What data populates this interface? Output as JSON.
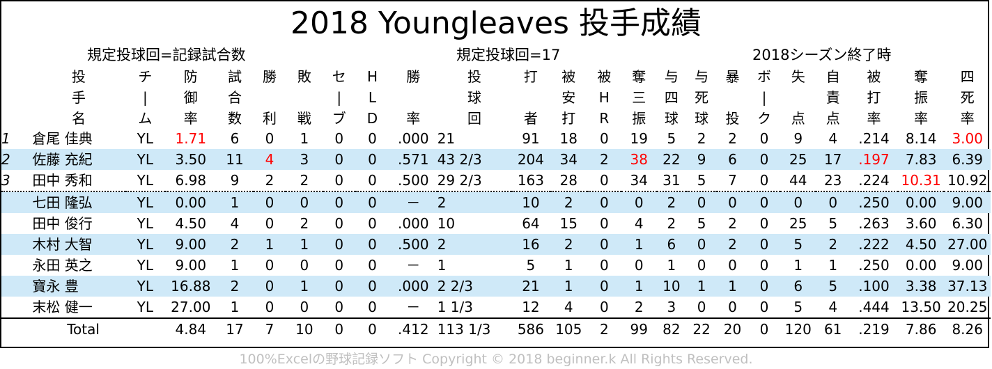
{
  "title": "2018 Youngleaves 投手成績",
  "subtitle_left": "規定投球回=記録試合数",
  "subtitle_center": "規定投球回=17",
  "subtitle_right": "2018シーズン終了時",
  "columns": [
    {
      "key": "rank",
      "l1": "",
      "l2": "",
      "l3": ""
    },
    {
      "key": "name",
      "l1": "投",
      "l2": "手",
      "l3": "名"
    },
    {
      "key": "team",
      "l1": "チ",
      "l2": "|",
      "l3": "ム"
    },
    {
      "key": "era",
      "l1": "防",
      "l2": "御",
      "l3": "率"
    },
    {
      "key": "games",
      "l1": "試",
      "l2": "合",
      "l3": "数"
    },
    {
      "key": "wins",
      "l1": "勝",
      "l2": "",
      "l3": "利"
    },
    {
      "key": "losses",
      "l1": "敗",
      "l2": "",
      "l3": "戦"
    },
    {
      "key": "saves",
      "l1": "セ",
      "l2": "|",
      "l3": "ブ"
    },
    {
      "key": "holds",
      "l1": "H",
      "l2": "L",
      "l3": "D"
    },
    {
      "key": "wpct",
      "l1": "勝",
      "l2": "",
      "l3": "率"
    },
    {
      "key": "ip",
      "l1": "投",
      "l2": "球",
      "l3": "回"
    },
    {
      "key": "bf",
      "l1": "打",
      "l2": "",
      "l3": "者"
    },
    {
      "key": "hits",
      "l1": "被",
      "l2": "安",
      "l3": "打"
    },
    {
      "key": "hr",
      "l1": "被",
      "l2": "H",
      "l3": "R"
    },
    {
      "key": "so",
      "l1": "奪",
      "l2": "三",
      "l3": "振"
    },
    {
      "key": "bb",
      "l1": "与",
      "l2": "四",
      "l3": "球"
    },
    {
      "key": "hbp",
      "l1": "与",
      "l2": "死",
      "l3": "球"
    },
    {
      "key": "wp",
      "l1": "暴",
      "l2": "",
      "l3": "投"
    },
    {
      "key": "bk",
      "l1": "ボ",
      "l2": "|",
      "l3": "ク"
    },
    {
      "key": "runs",
      "l1": "失",
      "l2": "",
      "l3": "点"
    },
    {
      "key": "er",
      "l1": "自",
      "l2": "責",
      "l3": "点"
    },
    {
      "key": "baa",
      "l1": "被",
      "l2": "打",
      "l3": "率"
    },
    {
      "key": "k9",
      "l1": "奪",
      "l2": "振",
      "l3": "率"
    },
    {
      "key": "bb9",
      "l1": "四",
      "l2": "死",
      "l3": "率"
    }
  ],
  "rows": [
    {
      "rank": "1",
      "name": "倉尾 佳典",
      "team": "YL",
      "era": "1.71",
      "games": "6",
      "wins": "0",
      "losses": "1",
      "saves": "0",
      "holds": "0",
      "wpct": ".000",
      "ip": "21",
      "bf": "91",
      "hits": "18",
      "hr": "0",
      "so": "19",
      "bb": "5",
      "hbp": "2",
      "wp": "2",
      "bk": "0",
      "runs": "9",
      "er": "4",
      "baa": ".214",
      "k9": "8.14",
      "bb9": "3.00",
      "highlight": [
        "era",
        "bb9"
      ]
    },
    {
      "rank": "2",
      "name": "佐藤 充紀",
      "team": "YL",
      "era": "3.50",
      "games": "11",
      "wins": "4",
      "losses": "3",
      "saves": "0",
      "holds": "0",
      "wpct": ".571",
      "ip": "43 2/3",
      "bf": "204",
      "hits": "34",
      "hr": "2",
      "so": "38",
      "bb": "22",
      "hbp": "9",
      "wp": "6",
      "bk": "0",
      "runs": "25",
      "er": "17",
      "baa": ".197",
      "k9": "7.83",
      "bb9": "6.39",
      "highlight": [
        "wins",
        "so",
        "baa"
      ]
    },
    {
      "rank": "3",
      "name": "田中 秀和",
      "team": "YL",
      "era": "6.98",
      "games": "9",
      "wins": "2",
      "losses": "2",
      "saves": "0",
      "holds": "0",
      "wpct": ".500",
      "ip": "29 2/3",
      "bf": "163",
      "hits": "28",
      "hr": "0",
      "so": "34",
      "bb": "31",
      "hbp": "5",
      "wp": "7",
      "bk": "0",
      "runs": "44",
      "er": "23",
      "baa": ".224",
      "k9": "10.31",
      "bb9": "10.92",
      "highlight": [
        "k9"
      ]
    },
    {
      "rank": "",
      "name": "七田 隆弘",
      "team": "YL",
      "era": "0.00",
      "games": "1",
      "wins": "0",
      "losses": "0",
      "saves": "0",
      "holds": "0",
      "wpct": "－",
      "ip": "2",
      "bf": "10",
      "hits": "2",
      "hr": "0",
      "so": "0",
      "bb": "2",
      "hbp": "0",
      "wp": "0",
      "bk": "0",
      "runs": "0",
      "er": "0",
      "baa": ".250",
      "k9": "0.00",
      "bb9": "9.00",
      "highlight": []
    },
    {
      "rank": "",
      "name": "田中 俊行",
      "team": "YL",
      "era": "4.50",
      "games": "4",
      "wins": "0",
      "losses": "2",
      "saves": "0",
      "holds": "0",
      "wpct": ".000",
      "ip": "10",
      "bf": "64",
      "hits": "15",
      "hr": "0",
      "so": "4",
      "bb": "2",
      "hbp": "5",
      "wp": "2",
      "bk": "0",
      "runs": "25",
      "er": "5",
      "baa": ".263",
      "k9": "3.60",
      "bb9": "6.30",
      "highlight": []
    },
    {
      "rank": "",
      "name": "木村 大智",
      "team": "YL",
      "era": "9.00",
      "games": "2",
      "wins": "1",
      "losses": "1",
      "saves": "0",
      "holds": "0",
      "wpct": ".500",
      "ip": "2",
      "bf": "16",
      "hits": "2",
      "hr": "0",
      "so": "1",
      "bb": "6",
      "hbp": "0",
      "wp": "2",
      "bk": "0",
      "runs": "5",
      "er": "2",
      "baa": ".222",
      "k9": "4.50",
      "bb9": "27.00",
      "highlight": []
    },
    {
      "rank": "",
      "name": "永田 英之",
      "team": "YL",
      "era": "9.00",
      "games": "1",
      "wins": "0",
      "losses": "0",
      "saves": "0",
      "holds": "0",
      "wpct": "－",
      "ip": "1",
      "bf": "5",
      "hits": "1",
      "hr": "0",
      "so": "0",
      "bb": "1",
      "hbp": "0",
      "wp": "0",
      "bk": "0",
      "runs": "1",
      "er": "1",
      "baa": ".250",
      "k9": "0.00",
      "bb9": "9.00",
      "highlight": []
    },
    {
      "rank": "",
      "name": "寶永 豊",
      "team": "YL",
      "era": "16.88",
      "games": "2",
      "wins": "0",
      "losses": "1",
      "saves": "0",
      "holds": "0",
      "wpct": ".000",
      "ip": "2 2/3",
      "bf": "21",
      "hits": "1",
      "hr": "0",
      "so": "1",
      "bb": "10",
      "hbp": "1",
      "wp": "1",
      "bk": "0",
      "runs": "6",
      "er": "5",
      "baa": ".100",
      "k9": "3.38",
      "bb9": "37.13",
      "highlight": []
    },
    {
      "rank": "",
      "name": "末松 健一",
      "team": "YL",
      "era": "27.00",
      "games": "1",
      "wins": "0",
      "losses": "0",
      "saves": "0",
      "holds": "0",
      "wpct": "－",
      "ip": "1 1/3",
      "bf": "12",
      "hits": "4",
      "hr": "0",
      "so": "2",
      "bb": "3",
      "hbp": "0",
      "wp": "0",
      "bk": "0",
      "runs": "5",
      "er": "4",
      "baa": ".444",
      "k9": "13.50",
      "bb9": "20.25",
      "highlight": []
    }
  ],
  "total": {
    "label": "Total",
    "era": "4.84",
    "games": "17",
    "wins": "7",
    "losses": "10",
    "saves": "0",
    "holds": "0",
    "wpct": ".412",
    "ip": "113 1/3",
    "bf": "586",
    "hits": "105",
    "hr": "2",
    "so": "99",
    "bb": "82",
    "hbp": "22",
    "wp": "20",
    "bk": "0",
    "runs": "120",
    "er": "61",
    "baa": ".219",
    "k9": "7.86",
    "bb9": "8.26"
  },
  "footer": "100%Excelの野球記録ソフト Copyright © 2018 beginner.k All Rights Reserved.",
  "colors": {
    "alt_row": "#cfe9f8",
    "highlight": "#ff0000",
    "footer": "#c0c0c0"
  }
}
